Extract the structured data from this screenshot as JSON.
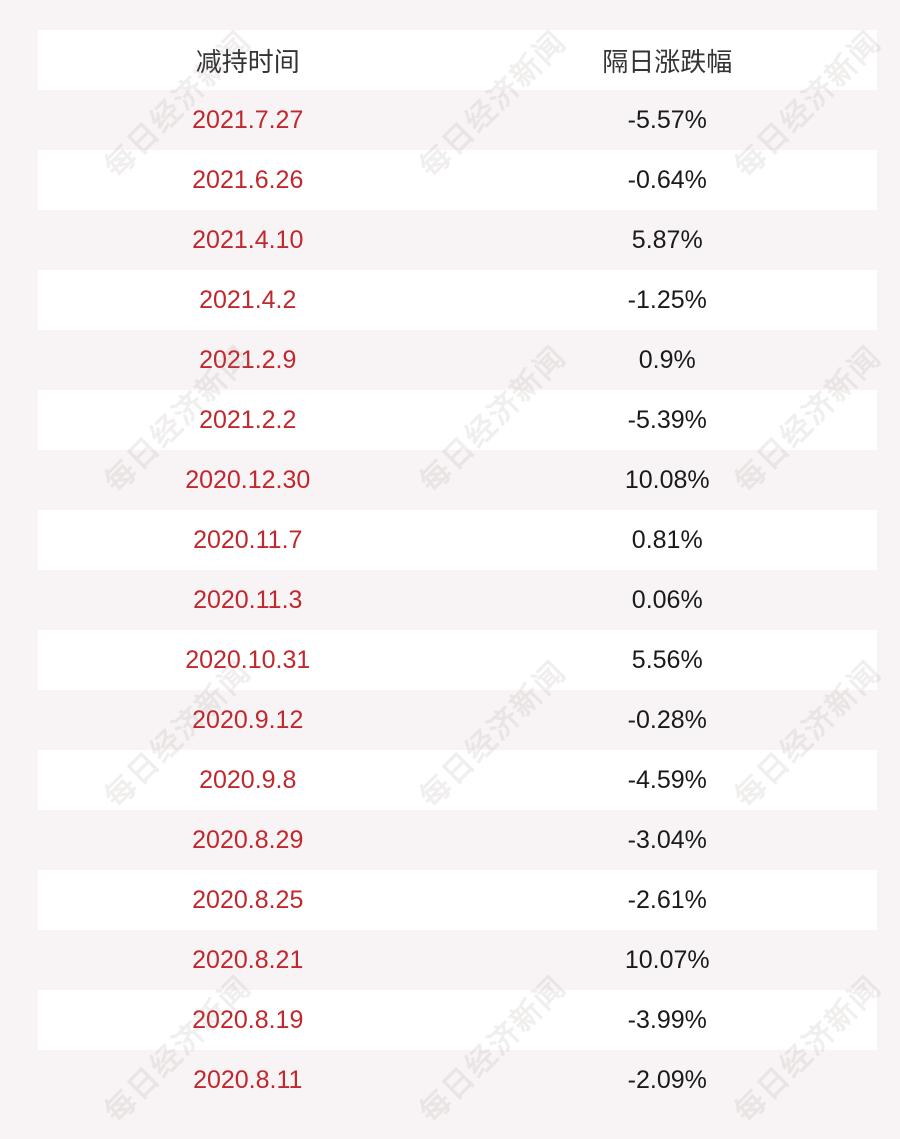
{
  "header": {
    "col1": "减持时间",
    "col2": "隔日涨跌幅"
  },
  "rows": [
    {
      "date": "2021.7.27",
      "change": "-5.57%"
    },
    {
      "date": "2021.6.26",
      "change": "-0.64%"
    },
    {
      "date": "2021.4.10",
      "change": "5.87%"
    },
    {
      "date": "2021.4.2",
      "change": "-1.25%"
    },
    {
      "date": "2021.2.9",
      "change": "0.9%"
    },
    {
      "date": "2021.2.2",
      "change": "-5.39%"
    },
    {
      "date": "2020.12.30",
      "change": "10.08%"
    },
    {
      "date": "2020.11.7",
      "change": "0.81%"
    },
    {
      "date": "2020.11.3",
      "change": "0.06%"
    },
    {
      "date": "2020.10.31",
      "change": "5.56%"
    },
    {
      "date": "2020.9.12",
      "change": "-0.28%"
    },
    {
      "date": "2020.9.8",
      "change": "-4.59%"
    },
    {
      "date": "2020.8.29",
      "change": "-3.04%"
    },
    {
      "date": "2020.8.25",
      "change": "-2.61%"
    },
    {
      "date": "2020.8.21",
      "change": "10.07%"
    },
    {
      "date": "2020.8.19",
      "change": "-3.99%"
    },
    {
      "date": "2020.8.11",
      "change": "-2.09%"
    }
  ],
  "watermark": "每日经济新闻",
  "colors": {
    "date": "#c0282d",
    "change": "#1a1a1a",
    "header": "#333333",
    "row_alt": "#f8f4f5",
    "row": "#ffffff"
  }
}
